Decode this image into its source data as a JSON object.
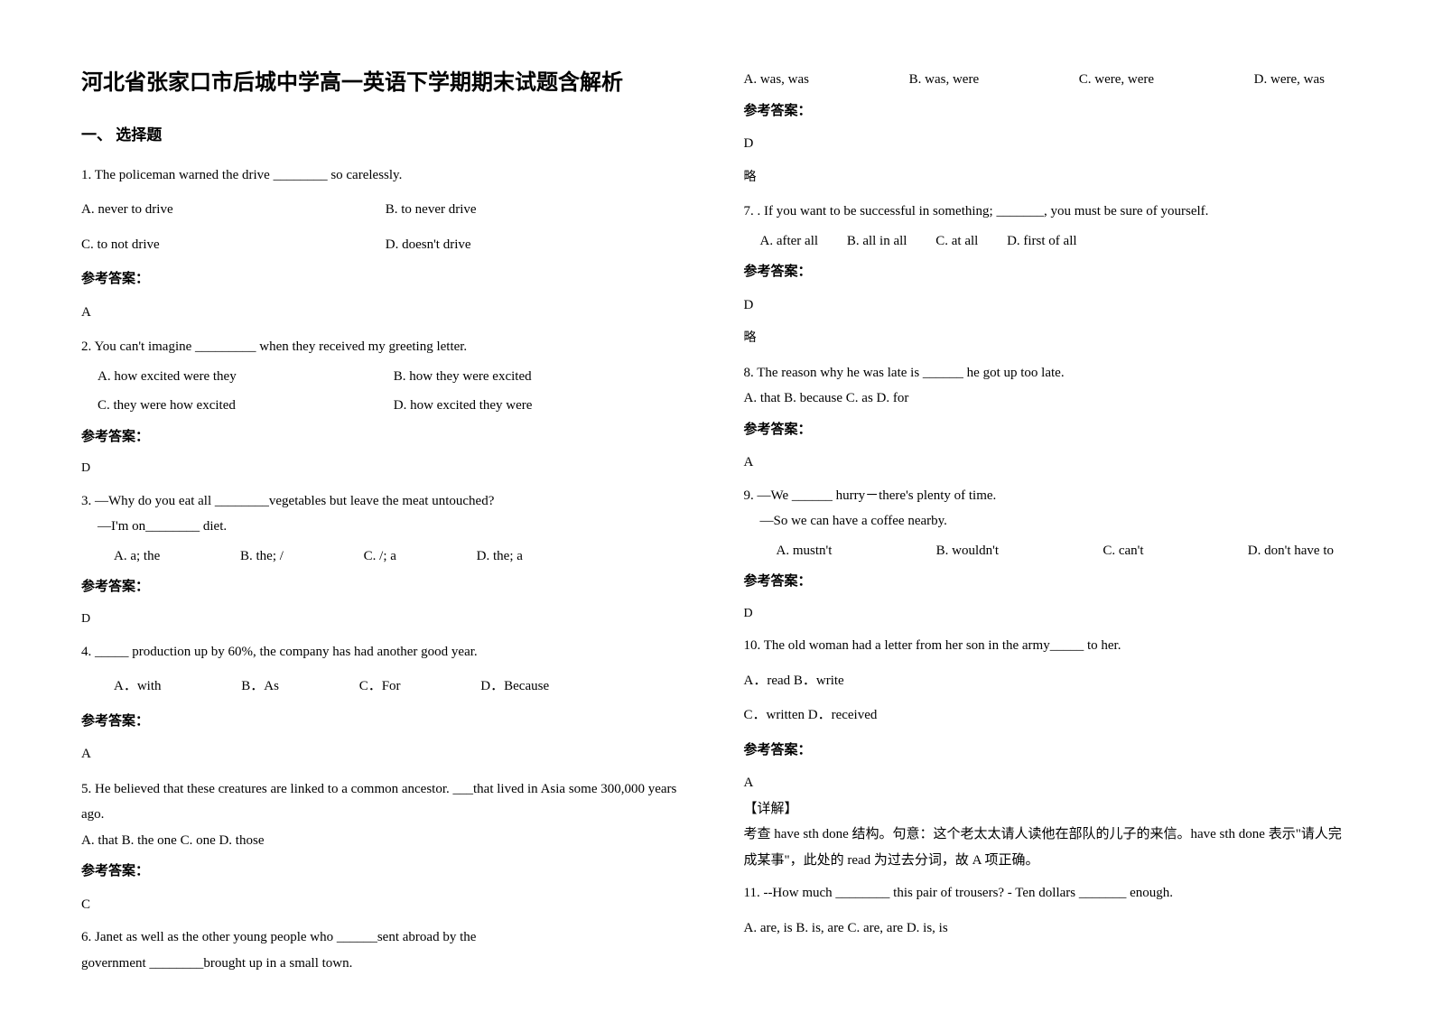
{
  "title": "河北省张家口市后城中学高一英语下学期期末试题含解析",
  "section1": "一、 选择题",
  "q1": {
    "stem": "1. The policeman warned the drive ________ so carelessly.",
    "optA": "A.  never to drive",
    "optB": "B.  to never drive",
    "optC": "C.  to not drive",
    "optD": "D.  doesn't drive",
    "answer_label": "参考答案：",
    "answer": "A"
  },
  "q2": {
    "stem": "2. You can't imagine _________ when they received my greeting letter.",
    "optA": "A. how excited were they",
    "optB": "B. how they were excited",
    "optC": "C. they were how excited",
    "optD": "D. how excited they were",
    "answer_label": "参考答案：",
    "answer": "D"
  },
  "q3": {
    "stem1": "3. —Why do you eat all ________vegetables but leave the meat untouched?",
    "stem2": "—I'm on________ diet.",
    "optA": "A. a; the",
    "optB": "B. the; /",
    "optC": "C. /; a",
    "optD": "D. the; a",
    "answer_label": "参考答案：",
    "answer": "D"
  },
  "q4": {
    "stem": "4. _____ production up by 60%, the company has had another good year.",
    "optA": "A．with",
    "optB": "B．As",
    "optC": "C．For",
    "optD": "D．Because",
    "answer_label": "参考答案：",
    "answer": "A"
  },
  "q5": {
    "stem": "5. He believed that these creatures are linked to a common ancestor. ___that lived in Asia some 300,000 years ago.",
    "opts": "A. that   B. the one   C. one   D. those",
    "answer_label": "参考答案：",
    "answer": "C"
  },
  "q6": {
    "stem1": "6. Janet as well as the other young people who ______sent abroad by the",
    "stem2": "government       ________brought up in a small town.",
    "optA": "A. was, was",
    "optB": "B. was, were",
    "optC": "C. were, were",
    "optD": "D. were, was",
    "answer_label": "参考答案：",
    "answer": "D",
    "note": "略"
  },
  "q7": {
    "stem": "7. . If you want to be successful in something; _______, you must be sure of yourself.",
    "optA": "A. after all",
    "optB": "B. all in all",
    "optC": "C. at all",
    "optD": "D. first of all",
    "answer_label": "参考答案：",
    "answer": "D",
    "note": "略"
  },
  "q8": {
    "stem": "8. The reason why he was late is ______ he got up too late.",
    "opts": "A. that          B. because        C. as    D. for",
    "answer_label": "参考答案：",
    "answer": "A"
  },
  "q9": {
    "stem1": "9. —We ______ hurry－there's plenty of time.",
    "stem2": "—So we can have a coffee nearby.",
    "optA": "A. mustn't",
    "optB": "B. wouldn't",
    "optC": "C. can't",
    "optD": "D. don't have to",
    "answer_label": "参考答案：",
    "answer": "D"
  },
  "q10": {
    "stem": "10. The old woman had a letter from her son in the army_____ to her.",
    "opts1": "A．read   B．write",
    "opts2": "C．written   D．received",
    "answer_label": "参考答案：",
    "answer": "A",
    "detail_label": "【详解】",
    "detail": "考查 have sth done 结构。句意：这个老太太请人读他在部队的儿子的来信。have sth done 表示\"请人完成某事\"，此处的 read 为过去分词，故 A 项正确。"
  },
  "q11": {
    "stem": "11. --How much ________ this pair of trousers? - Ten dollars _______ enough.",
    "opts": "A. are, is      B. is, are       C. are, are      D. is, is"
  }
}
